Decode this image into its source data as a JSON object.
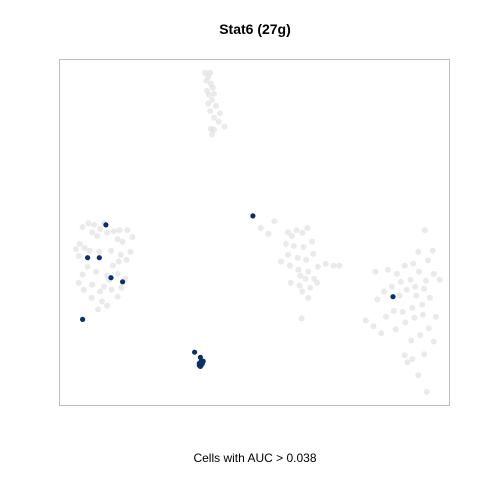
{
  "chart_data": {
    "type": "scatter",
    "title": "Stat6 (27g)",
    "xlabel": "Cells with AUC > 0.038",
    "ylabel": "",
    "xlim": [
      0,
      100
    ],
    "ylim": [
      0,
      100
    ],
    "grid": false,
    "legend": "none",
    "colors": {
      "background_cells": "#d9d9d9",
      "highlighted_cells": "#0b2f66",
      "frame": "#bdbdbd"
    },
    "series": [
      {
        "values": [
          [
            37.3,
            96.3
          ],
          [
            38.6,
            96.3
          ],
          [
            38.1,
            95.1
          ],
          [
            37.6,
            94.0
          ],
          [
            38.8,
            93.1
          ],
          [
            39.3,
            91.9
          ],
          [
            37.8,
            91.1
          ],
          [
            38.3,
            89.9
          ],
          [
            39.6,
            90.2
          ],
          [
            39.1,
            88.4
          ],
          [
            38.1,
            87.3
          ],
          [
            40.1,
            86.7
          ],
          [
            38.6,
            85.2
          ],
          [
            41.1,
            84.6
          ],
          [
            39.6,
            83.3
          ],
          [
            40.8,
            82.1
          ],
          [
            38.8,
            80.1
          ],
          [
            39.6,
            79.8
          ],
          [
            42.3,
            80.7
          ],
          [
            39.1,
            78.4
          ],
          [
            55.1,
            53.3
          ],
          [
            51.6,
            51.3
          ],
          [
            53.6,
            49.6
          ],
          [
            58.6,
            50.1
          ],
          [
            59.6,
            49.0
          ],
          [
            60.8,
            50.7
          ],
          [
            62.3,
            49.9
          ],
          [
            63.6,
            51.3
          ],
          [
            58.1,
            46.7
          ],
          [
            60.1,
            46.1
          ],
          [
            62.6,
            45.8
          ],
          [
            64.8,
            47.3
          ],
          [
            58.6,
            43.5
          ],
          [
            61.1,
            42.7
          ],
          [
            63.3,
            42.1
          ],
          [
            65.1,
            43.8
          ],
          [
            56.8,
            41.6
          ],
          [
            59.1,
            40.4
          ],
          [
            61.3,
            39.2
          ],
          [
            63.8,
            38.6
          ],
          [
            66.3,
            40.1
          ],
          [
            68.3,
            40.9
          ],
          [
            70.3,
            40.4
          ],
          [
            71.8,
            40.4
          ],
          [
            61.8,
            37.5
          ],
          [
            63.1,
            36.6
          ],
          [
            65.3,
            36.6
          ],
          [
            59.3,
            35.4
          ],
          [
            61.6,
            34.6
          ],
          [
            64.3,
            34.0
          ],
          [
            62.3,
            32.9
          ],
          [
            63.8,
            31.1
          ],
          [
            66.1,
            35.4
          ],
          [
            62.1,
            25.1
          ],
          [
            7.3,
            52.7
          ],
          [
            5.8,
            51.6
          ],
          [
            8.8,
            52.2
          ],
          [
            10.3,
            51.0
          ],
          [
            11.3,
            52.7
          ],
          [
            8.3,
            50.1
          ],
          [
            9.6,
            49.0
          ],
          [
            12.1,
            49.9
          ],
          [
            13.8,
            50.4
          ],
          [
            15.3,
            50.7
          ],
          [
            17.3,
            50.7
          ],
          [
            18.6,
            48.7
          ],
          [
            16.1,
            47.3
          ],
          [
            14.8,
            48.1
          ],
          [
            5.1,
            46.7
          ],
          [
            6.3,
            45.5
          ],
          [
            4.1,
            45.2
          ],
          [
            4.8,
            43.2
          ],
          [
            7.6,
            44.7
          ],
          [
            10.1,
            44.4
          ],
          [
            13.1,
            44.7
          ],
          [
            15.6,
            43.5
          ],
          [
            18.1,
            44.4
          ],
          [
            17.1,
            42.1
          ],
          [
            15.1,
            41.6
          ],
          [
            13.6,
            40.4
          ],
          [
            14.8,
            38.0
          ],
          [
            12.1,
            37.5
          ],
          [
            9.3,
            38.6
          ],
          [
            7.1,
            40.1
          ],
          [
            5.8,
            37.8
          ],
          [
            4.8,
            35.4
          ],
          [
            6.1,
            33.4
          ],
          [
            8.3,
            34.9
          ],
          [
            10.3,
            32.9
          ],
          [
            12.6,
            36.3
          ],
          [
            13.3,
            33.4
          ],
          [
            14.8,
            31.4
          ],
          [
            16.8,
            36.6
          ],
          [
            8.1,
            31.1
          ],
          [
            10.8,
            30.0
          ],
          [
            12.1,
            28.8
          ],
          [
            9.8,
            27.7
          ],
          [
            11.3,
            34.3
          ],
          [
            15.8,
            34.0
          ],
          [
            81.1,
            38.6
          ],
          [
            84.3,
            39.2
          ],
          [
            86.6,
            38.0
          ],
          [
            88.6,
            40.4
          ],
          [
            90.8,
            41.0
          ],
          [
            92.1,
            44.4
          ],
          [
            93.8,
            50.7
          ],
          [
            95.8,
            44.7
          ],
          [
            94.6,
            41.9
          ],
          [
            92.3,
            38.6
          ],
          [
            90.1,
            36.3
          ],
          [
            87.6,
            35.7
          ],
          [
            85.3,
            34.3
          ],
          [
            83.3,
            32.9
          ],
          [
            81.6,
            30.6
          ],
          [
            89.1,
            33.4
          ],
          [
            91.3,
            34.3
          ],
          [
            94.1,
            36.0
          ],
          [
            96.1,
            38.0
          ],
          [
            97.6,
            36.3
          ],
          [
            93.6,
            33.7
          ],
          [
            91.6,
            31.7
          ],
          [
            95.1,
            31.1
          ],
          [
            93.1,
            29.1
          ],
          [
            90.6,
            28.2
          ],
          [
            88.1,
            27.0
          ],
          [
            85.8,
            27.3
          ],
          [
            83.8,
            25.6
          ],
          [
            78.6,
            24.5
          ],
          [
            80.6,
            22.8
          ],
          [
            82.6,
            20.8
          ],
          [
            86.3,
            21.9
          ],
          [
            88.8,
            23.9
          ],
          [
            91.1,
            25.3
          ],
          [
            93.3,
            26.2
          ],
          [
            96.6,
            25.6
          ],
          [
            94.8,
            22.2
          ],
          [
            92.6,
            20.2
          ],
          [
            90.3,
            18.7
          ],
          [
            88.6,
            14.4
          ],
          [
            90.6,
            13.3
          ],
          [
            93.6,
            14.7
          ],
          [
            92.1,
            8.6
          ],
          [
            94.3,
            3.8
          ],
          [
            96.1,
            18.4
          ],
          [
            89.3,
            12.4
          ],
          [
            87.3,
            31.7
          ]
        ]
      },
      {
        "values": [
          [
            49.6,
            54.8
          ],
          [
            11.8,
            52.2
          ],
          [
            7.1,
            42.7
          ],
          [
            10.1,
            42.7
          ],
          [
            13.1,
            36.9
          ],
          [
            16.1,
            35.7
          ],
          [
            5.8,
            24.8
          ],
          [
            34.6,
            15.3
          ],
          [
            36.1,
            13.8
          ],
          [
            36.3,
            12.7
          ],
          [
            36.8,
            12.7
          ],
          [
            36.1,
            12.1
          ],
          [
            36.3,
            11.8
          ],
          [
            35.8,
            11.5
          ],
          [
            36.1,
            11.2
          ],
          [
            36.6,
            12.1
          ],
          [
            36.1,
            11.8
          ],
          [
            36.3,
            11.5
          ],
          [
            35.8,
            12.1
          ],
          [
            85.6,
            31.4
          ]
        ]
      }
    ]
  }
}
